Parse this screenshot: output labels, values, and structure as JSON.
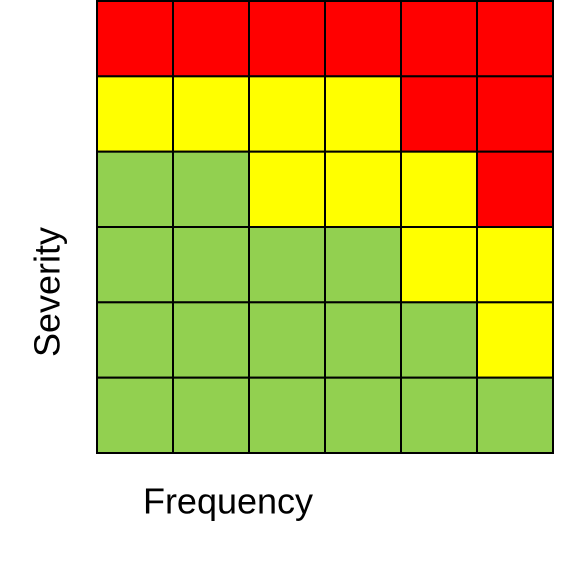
{
  "y_axis_label": "Severity",
  "x_axis_label": "Frequency",
  "cell_colors": [
    [
      "#ff0000",
      "#ff0000",
      "#ff0000",
      "#ff0000",
      "#ff0000",
      "#ff0000"
    ],
    [
      "#ffff00",
      "#ffff00",
      "#ffff00",
      "#ffff00",
      "#ff0000",
      "#ff0000"
    ],
    [
      "#92d050",
      "#92d050",
      "#ffff00",
      "#ffff00",
      "#ffff00",
      "#ff0000"
    ],
    [
      "#92d050",
      "#92d050",
      "#92d050",
      "#92d050",
      "#ffff00",
      "#ffff00"
    ],
    [
      "#92d050",
      "#92d050",
      "#92d050",
      "#92d050",
      "#92d050",
      "#ffff00"
    ],
    [
      "#92d050",
      "#92d050",
      "#92d050",
      "#92d050",
      "#92d050",
      "#92d050"
    ]
  ]
}
